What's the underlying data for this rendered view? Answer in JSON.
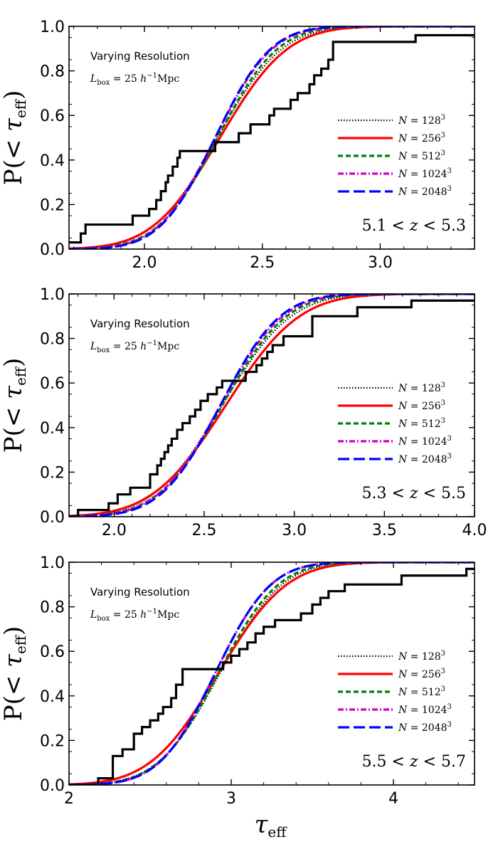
{
  "chart_data": [
    {
      "type": "line",
      "panel": "top",
      "annotation": "Varying Resolution",
      "box_label": "L_box = 25 h^-1 Mpc",
      "redshift_label": "5.1 < z < 5.3",
      "ylabel": "P(< τ_eff)",
      "xlabel": "",
      "xlim": [
        1.68,
        3.4
      ],
      "ylim": [
        0.0,
        1.0
      ],
      "xticks": [
        "2.0",
        "2.5",
        "3.0"
      ],
      "xtick_values": [
        2.0,
        2.5,
        3.0
      ],
      "yticks": [
        "0.0",
        "0.2",
        "0.4",
        "0.6",
        "0.8",
        "1.0"
      ],
      "ytick_values": [
        0.0,
        0.2,
        0.4,
        0.6,
        0.8,
        1.0
      ],
      "legend": [
        "N = 128^3",
        "N = 256^3",
        "N = 512^3",
        "N = 1024^3",
        "N = 2048^3"
      ],
      "series": [
        {
          "name": "N = 128^3",
          "style": "dotted",
          "color": "#000000",
          "mu": 2.31,
          "sigma": 0.215
        },
        {
          "name": "N = 256^3",
          "style": "solid",
          "color": "#ff0000",
          "mu": 2.32,
          "sigma": 0.225
        },
        {
          "name": "N = 512^3",
          "style": "dashed",
          "color": "#008000",
          "mu": 2.31,
          "sigma": 0.2
        },
        {
          "name": "N = 1024^3",
          "style": "dashdot",
          "color": "#cc00cc",
          "mu": 2.3,
          "sigma": 0.19
        },
        {
          "name": "N = 2048^3",
          "style": "longdash",
          "color": "#0000ff",
          "mu": 2.3,
          "sigma": 0.185
        }
      ],
      "observed_step": {
        "x": [
          1.68,
          1.73,
          1.75,
          1.95,
          2.02,
          2.05,
          2.07,
          2.09,
          2.1,
          2.12,
          2.14,
          2.15,
          2.18,
          2.3,
          2.4,
          2.45,
          2.53,
          2.55,
          2.62,
          2.65,
          2.7,
          2.72,
          2.75,
          2.78,
          2.8,
          3.15,
          3.4
        ],
        "y": [
          0.03,
          0.07,
          0.11,
          0.15,
          0.18,
          0.22,
          0.26,
          0.3,
          0.33,
          0.37,
          0.41,
          0.44,
          0.44,
          0.48,
          0.52,
          0.56,
          0.6,
          0.63,
          0.67,
          0.7,
          0.74,
          0.78,
          0.81,
          0.85,
          0.93,
          0.96,
          0.96
        ]
      }
    },
    {
      "type": "line",
      "panel": "middle",
      "annotation": "Varying Resolution",
      "box_label": "L_box = 25 h^-1 Mpc",
      "redshift_label": "5.3 < z < 5.5",
      "ylabel": "P(< τ_eff)",
      "xlabel": "",
      "xlim": [
        1.75,
        4.0
      ],
      "ylim": [
        0.0,
        1.0
      ],
      "xticks": [
        "2.0",
        "2.5",
        "3.0",
        "3.5",
        "4.0"
      ],
      "xtick_values": [
        2.0,
        2.5,
        3.0,
        3.5,
        4.0
      ],
      "yticks": [
        "0.0",
        "0.2",
        "0.4",
        "0.6",
        "0.8",
        "1.0"
      ],
      "ytick_values": [
        0.0,
        0.2,
        0.4,
        0.6,
        0.8,
        1.0
      ],
      "legend": [
        "N = 128^3",
        "N = 256^3",
        "N = 512^3",
        "N = 1024^3",
        "N = 2048^3"
      ],
      "series": [
        {
          "name": "N = 128^3",
          "style": "dotted",
          "color": "#000000",
          "mu": 2.6,
          "sigma": 0.3
        },
        {
          "name": "N = 256^3",
          "style": "solid",
          "color": "#ff0000",
          "mu": 2.62,
          "sigma": 0.32
        },
        {
          "name": "N = 512^3",
          "style": "dashed",
          "color": "#008000",
          "mu": 2.6,
          "sigma": 0.28
        },
        {
          "name": "N = 1024^3",
          "style": "dashdot",
          "color": "#cc00cc",
          "mu": 2.59,
          "sigma": 0.27
        },
        {
          "name": "N = 2048^3",
          "style": "longdash",
          "color": "#0000ff",
          "mu": 2.59,
          "sigma": 0.26
        }
      ],
      "observed_step": {
        "x": [
          1.75,
          1.8,
          1.97,
          2.02,
          2.09,
          2.2,
          2.24,
          2.26,
          2.28,
          2.3,
          2.32,
          2.35,
          2.38,
          2.42,
          2.45,
          2.48,
          2.52,
          2.57,
          2.6,
          2.73,
          2.79,
          2.82,
          2.85,
          2.88,
          2.94,
          3.1,
          3.35,
          3.65,
          4.0
        ],
        "y": [
          0.0,
          0.03,
          0.06,
          0.1,
          0.13,
          0.19,
          0.23,
          0.26,
          0.29,
          0.32,
          0.35,
          0.39,
          0.42,
          0.45,
          0.48,
          0.52,
          0.55,
          0.58,
          0.61,
          0.65,
          0.68,
          0.71,
          0.74,
          0.77,
          0.81,
          0.9,
          0.94,
          0.97,
          0.97
        ]
      }
    },
    {
      "type": "line",
      "panel": "bottom",
      "annotation": "Varying Resolution",
      "box_label": "L_box = 25 h^-1 Mpc",
      "redshift_label": "5.5 < z < 5.7",
      "ylabel": "P(< τ_eff)",
      "xlabel": "τ_eff",
      "xlim": [
        2.0,
        4.5
      ],
      "ylim": [
        0.0,
        1.0
      ],
      "xticks": [
        "2",
        "3",
        "4"
      ],
      "xtick_values": [
        2,
        3,
        4
      ],
      "yticks": [
        "0.0",
        "0.2",
        "0.4",
        "0.6",
        "0.8",
        "1.0"
      ],
      "ytick_values": [
        0.0,
        0.2,
        0.4,
        0.6,
        0.8,
        1.0
      ],
      "legend": [
        "N = 128^3",
        "N = 256^3",
        "N = 512^3",
        "N = 1024^3",
        "N = 2048^3"
      ],
      "series": [
        {
          "name": "N = 128^3",
          "style": "dotted",
          "color": "#000000",
          "mu": 2.93,
          "sigma": 0.3
        },
        {
          "name": "N = 256^3",
          "style": "solid",
          "color": "#ff0000",
          "mu": 2.92,
          "sigma": 0.33
        },
        {
          "name": "N = 512^3",
          "style": "dashed",
          "color": "#008000",
          "mu": 2.92,
          "sigma": 0.29
        },
        {
          "name": "N = 1024^3",
          "style": "dashdot",
          "color": "#cc00cc",
          "mu": 2.9,
          "sigma": 0.27
        },
        {
          "name": "N = 2048^3",
          "style": "longdash",
          "color": "#0000ff",
          "mu": 2.9,
          "sigma": 0.27
        }
      ],
      "observed_step": {
        "x": [
          2.0,
          2.18,
          2.27,
          2.33,
          2.4,
          2.45,
          2.5,
          2.55,
          2.58,
          2.63,
          2.66,
          2.7,
          2.88,
          2.95,
          3.0,
          3.05,
          3.1,
          3.15,
          3.2,
          3.27,
          3.3,
          3.43,
          3.5,
          3.55,
          3.6,
          3.7,
          4.05,
          4.45,
          4.5
        ],
        "y": [
          0.0,
          0.03,
          0.13,
          0.16,
          0.23,
          0.26,
          0.29,
          0.32,
          0.35,
          0.39,
          0.45,
          0.52,
          0.52,
          0.55,
          0.58,
          0.61,
          0.64,
          0.68,
          0.71,
          0.74,
          0.74,
          0.77,
          0.81,
          0.84,
          0.87,
          0.9,
          0.94,
          0.97,
          0.97
        ]
      }
    }
  ]
}
